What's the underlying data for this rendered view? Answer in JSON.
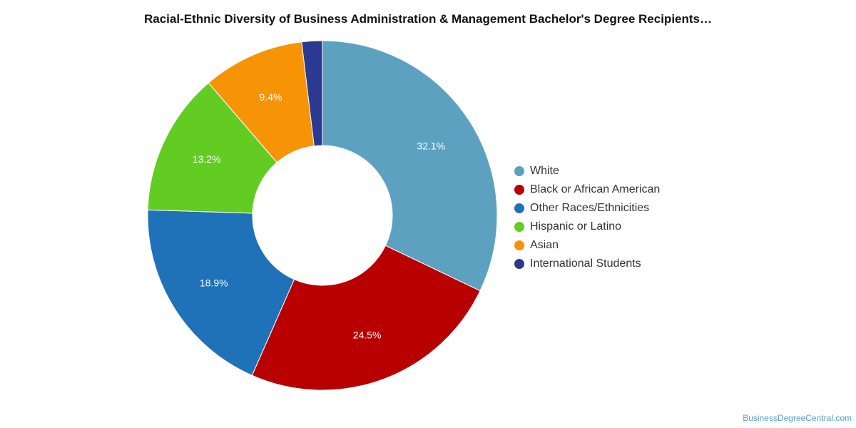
{
  "chart_data": {
    "type": "pie",
    "donut": true,
    "title": "Racial-Ethnic Diversity of Business Administration & Management Bachelor's Degree Recipients…",
    "labels": [
      "White",
      "Black or African American",
      "Other Races/Ethnicities",
      "Hispanic or Latino",
      "Asian",
      "International Students"
    ],
    "values": [
      32.1,
      24.5,
      18.9,
      13.2,
      9.4,
      1.9
    ],
    "value_labels": [
      "32.1%",
      "24.5%",
      "18.9%",
      "13.2%",
      "9.4%",
      ""
    ],
    "colors": [
      "#5ca2c0",
      "#b80000",
      "#1f72b8",
      "#62cc23",
      "#f79405",
      "#2b3990"
    ],
    "legend_position": "right"
  },
  "watermark": "BusinessDegreeCentral.com"
}
